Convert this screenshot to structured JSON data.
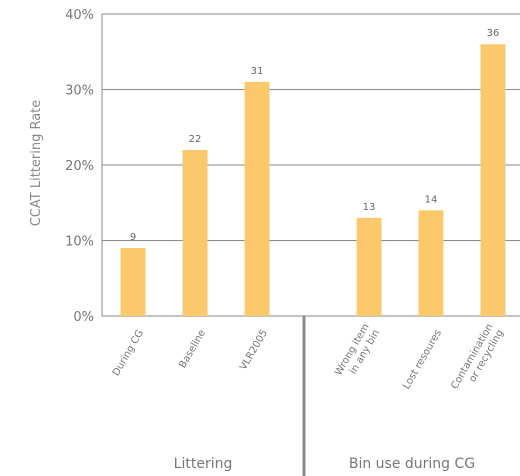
{
  "chart_data": {
    "type": "bar",
    "ylabel": "CCAT Littering Rate",
    "ylim": [
      0,
      40
    ],
    "yticks": [
      "0%",
      "10%",
      "20%",
      "30%",
      "40%"
    ],
    "ytick_values": [
      0,
      10,
      20,
      30,
      40
    ],
    "grid": true,
    "colors": {
      "bar": "#fbc96c",
      "grid": "#8a8a8a",
      "divider": "#8c8c8c"
    },
    "groups": [
      {
        "label": "Littering",
        "bars": [
          {
            "category": [
              "During CG"
            ],
            "value": 9,
            "label": "9"
          },
          {
            "category": [
              "Baseline"
            ],
            "value": 22,
            "label": "22"
          },
          {
            "category": [
              "VLR2005"
            ],
            "value": 31,
            "label": "31"
          }
        ]
      },
      {
        "label": "Bin use during CG",
        "bars": [
          {
            "category": [
              "Wrong item",
              "in any bin"
            ],
            "value": 13,
            "label": "13"
          },
          {
            "category": [
              "Lost resoures"
            ],
            "value": 14,
            "label": "14"
          },
          {
            "category": [
              "Contamination",
              "or recycling"
            ],
            "value": 36,
            "label": "36"
          }
        ]
      }
    ]
  }
}
